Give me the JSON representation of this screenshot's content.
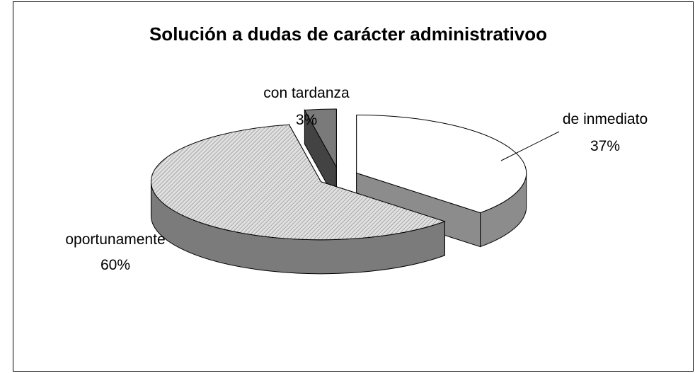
{
  "chart_data": {
    "type": "pie",
    "title": "Solución a dudas de carácter administrativoo",
    "categories": [
      "de inmediato",
      "oportunamente",
      "con tardanza"
    ],
    "values": [
      37,
      60,
      3
    ],
    "value_labels": [
      "37%",
      "60%",
      "3%"
    ],
    "colors": [
      "#ffffff",
      "#e0e0e0",
      "#7a7a7a"
    ]
  }
}
